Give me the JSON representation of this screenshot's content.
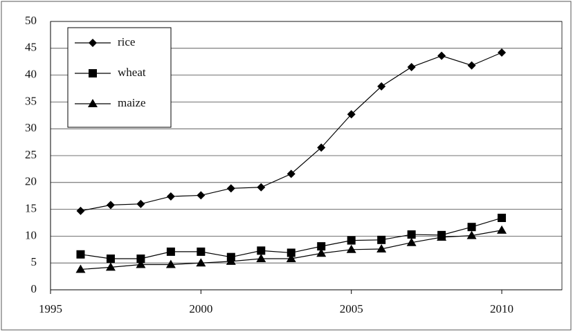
{
  "chart_data": {
    "type": "line",
    "x": [
      1996,
      1997,
      1998,
      1999,
      2000,
      2001,
      2002,
      2003,
      2004,
      2005,
      2006,
      2007,
      2008,
      2009,
      2010
    ],
    "series": [
      {
        "name": "rice",
        "color": "#000000",
        "marker": "diamond",
        "values": [
          14.7,
          15.8,
          16.0,
          17.4,
          17.6,
          18.9,
          19.1,
          21.6,
          26.5,
          32.7,
          37.9,
          41.5,
          43.6,
          41.8,
          44.2
        ]
      },
      {
        "name": "wheat",
        "color": "#000000",
        "marker": "square",
        "values": [
          6.6,
          5.8,
          5.8,
          7.1,
          7.1,
          6.1,
          7.3,
          6.9,
          8.1,
          9.2,
          9.3,
          10.3,
          10.2,
          11.7,
          13.4
        ]
      },
      {
        "name": "maize",
        "color": "#000000",
        "marker": "triangle",
        "values": [
          3.8,
          4.2,
          4.7,
          4.7,
          5.0,
          5.3,
          5.8,
          5.8,
          6.8,
          7.5,
          7.6,
          8.8,
          9.8,
          10.1,
          11.1
        ]
      }
    ],
    "xlim": [
      1995,
      2012
    ],
    "xticks": [
      1995,
      2000,
      2005,
      2010
    ],
    "ylim": [
      0,
      50
    ],
    "yticks": [
      0,
      5,
      10,
      15,
      20,
      25,
      30,
      35,
      40,
      45,
      50
    ],
    "grid": true,
    "legend": "top-left"
  }
}
